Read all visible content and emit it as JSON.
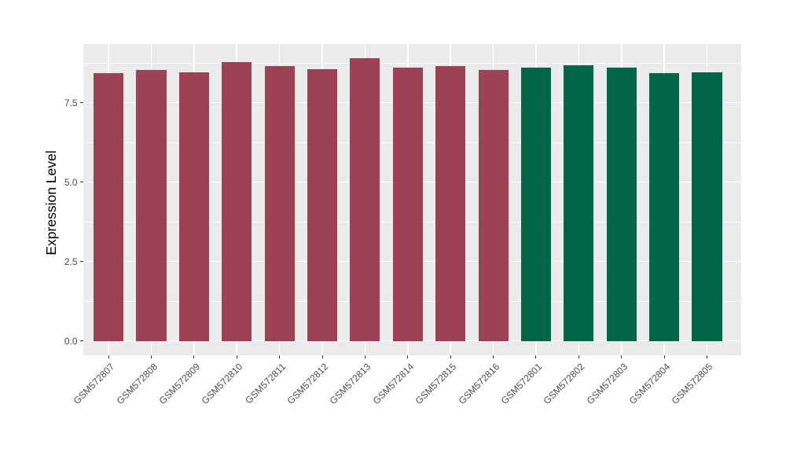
{
  "chart_data": {
    "type": "bar",
    "title": "",
    "xlabel": "",
    "ylabel": "Expression Level",
    "categories": [
      "GSM572807",
      "GSM572808",
      "GSM572809",
      "GSM572810",
      "GSM572811",
      "GSM572812",
      "GSM572813",
      "GSM572814",
      "GSM572815",
      "GSM572816",
      "GSM572801",
      "GSM572802",
      "GSM572803",
      "GSM572804",
      "GSM572805"
    ],
    "values": [
      8.43,
      8.54,
      8.46,
      8.77,
      8.65,
      8.56,
      8.89,
      8.61,
      8.64,
      8.52,
      8.6,
      8.68,
      8.6,
      8.42,
      8.46
    ],
    "colors": [
      "#9C4254",
      "#9C4254",
      "#9C4254",
      "#9C4254",
      "#9C4254",
      "#9C4254",
      "#9C4254",
      "#9C4254",
      "#9C4254",
      "#9C4254",
      "#016648",
      "#016648",
      "#016648",
      "#016648",
      "#016648"
    ],
    "group_colors": {
      "first_group": "#9C4254",
      "second_group": "#016648"
    },
    "y_ticks": [
      0,
      2.5,
      5,
      7.5
    ],
    "y_tick_labels": [
      "0.0",
      "2.5",
      "5.0",
      "7.5"
    ],
    "y_minor_ticks": [
      1.25,
      3.75,
      6.25,
      8.75
    ],
    "ylim": [
      -0.444,
      9.345
    ],
    "x_expand": 0.6,
    "bar_width": 0.7,
    "x_tick_angle": -45,
    "grid": true,
    "legend": "none",
    "panel_background": "#EBEBEB",
    "gridline_color": "#FFFFFF",
    "tick_color": "#333333",
    "text_color": "#4D4D4D",
    "title_color": "#000000",
    "outer_background": "#FFFFFF"
  }
}
